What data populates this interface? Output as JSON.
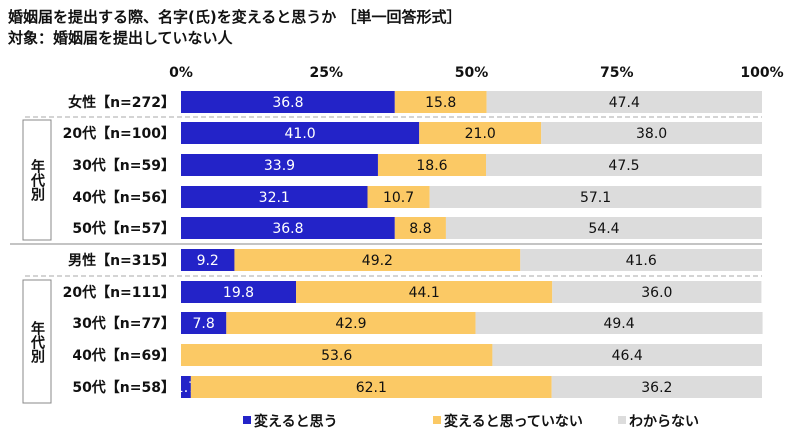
{
  "chart_data": {
    "type": "bar",
    "stacked": true,
    "orientation": "horizontal",
    "title": "婚姻届を提出する際、名字(氏)を変えると思うか ［単一回答形式］",
    "subtitle": "対象：婚姻届を提出していない人",
    "xlim": [
      0,
      100
    ],
    "x_ticks": [
      "0%",
      "25%",
      "50%",
      "75%",
      "100%"
    ],
    "categories": [
      "女性【n=272】",
      "20代【n=100】",
      "30代【n=59】",
      "40代【n=56】",
      "50代【n=57】",
      "男性【n=315】",
      "20代【n=111】",
      "30代【n=77】",
      "40代【n=69】",
      "50代【n=58】"
    ],
    "groups": [
      {
        "label": "年代別",
        "rows": [
          1,
          2,
          3,
          4
        ]
      },
      {
        "label": "年代別",
        "rows": [
          6,
          7,
          8,
          9
        ]
      }
    ],
    "series": [
      {
        "name": "変えると思う",
        "color": "#2323c8",
        "values": [
          36.8,
          41.0,
          33.9,
          32.1,
          36.8,
          9.2,
          19.8,
          7.8,
          0.0,
          1.7
        ]
      },
      {
        "name": "変えると思っていない",
        "color": "#fbc965",
        "values": [
          15.8,
          21.0,
          18.6,
          10.7,
          8.8,
          49.2,
          44.1,
          42.9,
          53.6,
          62.1
        ]
      },
      {
        "name": "わからない",
        "color": "#dcdcdc",
        "values": [
          47.4,
          38.0,
          47.5,
          57.1,
          54.4,
          41.6,
          36.0,
          49.4,
          46.4,
          36.2
        ]
      }
    ],
    "legend_position": "bottom"
  }
}
